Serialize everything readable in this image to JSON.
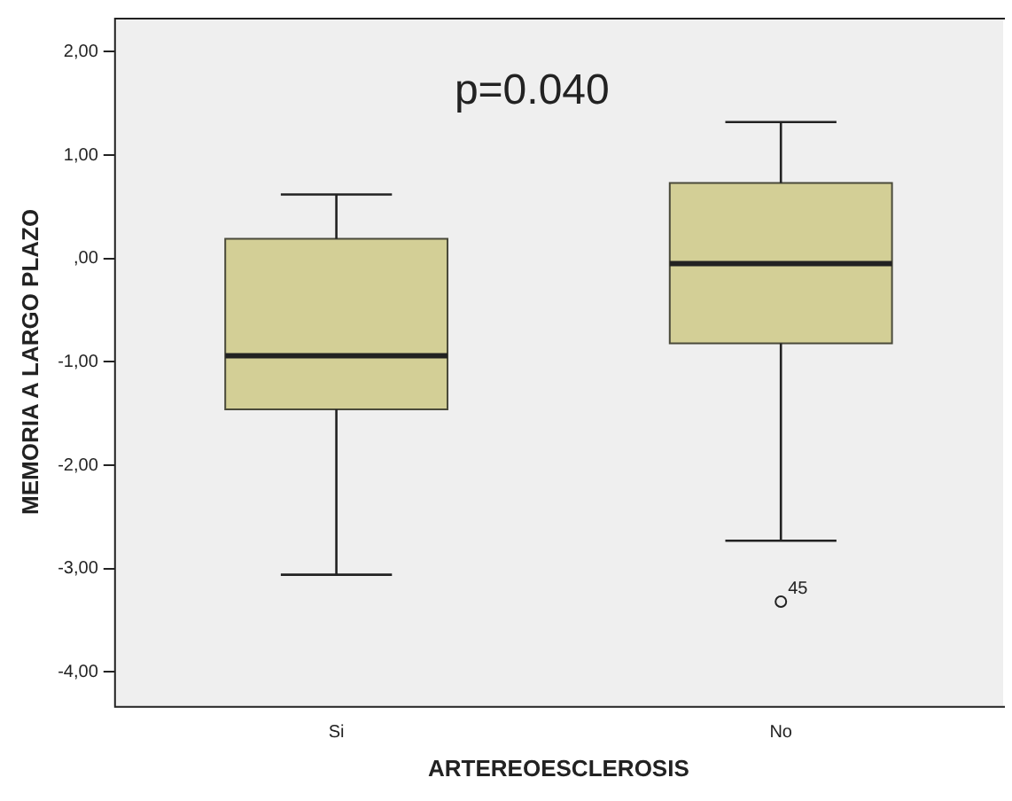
{
  "chart_data": {
    "type": "box",
    "xlabel": "ARTEREOESCLEROSIS",
    "ylabel": "MEMORIA A LARGO PLAZO",
    "categories": [
      "Si",
      "No"
    ],
    "color": "#d3cf96",
    "boxes": [
      {
        "low": -3.06,
        "q1": -1.46,
        "median": -0.94,
        "q3": 0.19,
        "high": 0.62
      },
      {
        "low": -2.73,
        "q1": -0.82,
        "median": -0.05,
        "q3": 0.73,
        "high": 1.32,
        "outliers": [
          -3.32
        ]
      }
    ],
    "ylim": [
      -4.33,
      2.33
    ],
    "yticks": [
      {
        "value": -4,
        "label": "-4,00"
      },
      {
        "value": -3,
        "label": "-3,00"
      },
      {
        "value": -2,
        "label": "-2,00"
      },
      {
        "value": -1,
        "label": "-1,00"
      },
      {
        "value": 0,
        "label": ",00"
      },
      {
        "value": 1,
        "label": "1,00"
      },
      {
        "value": 2,
        "label": "2,00"
      }
    ],
    "grid": false,
    "legend": false,
    "annotations": [
      "p=0.040",
      "45"
    ]
  }
}
